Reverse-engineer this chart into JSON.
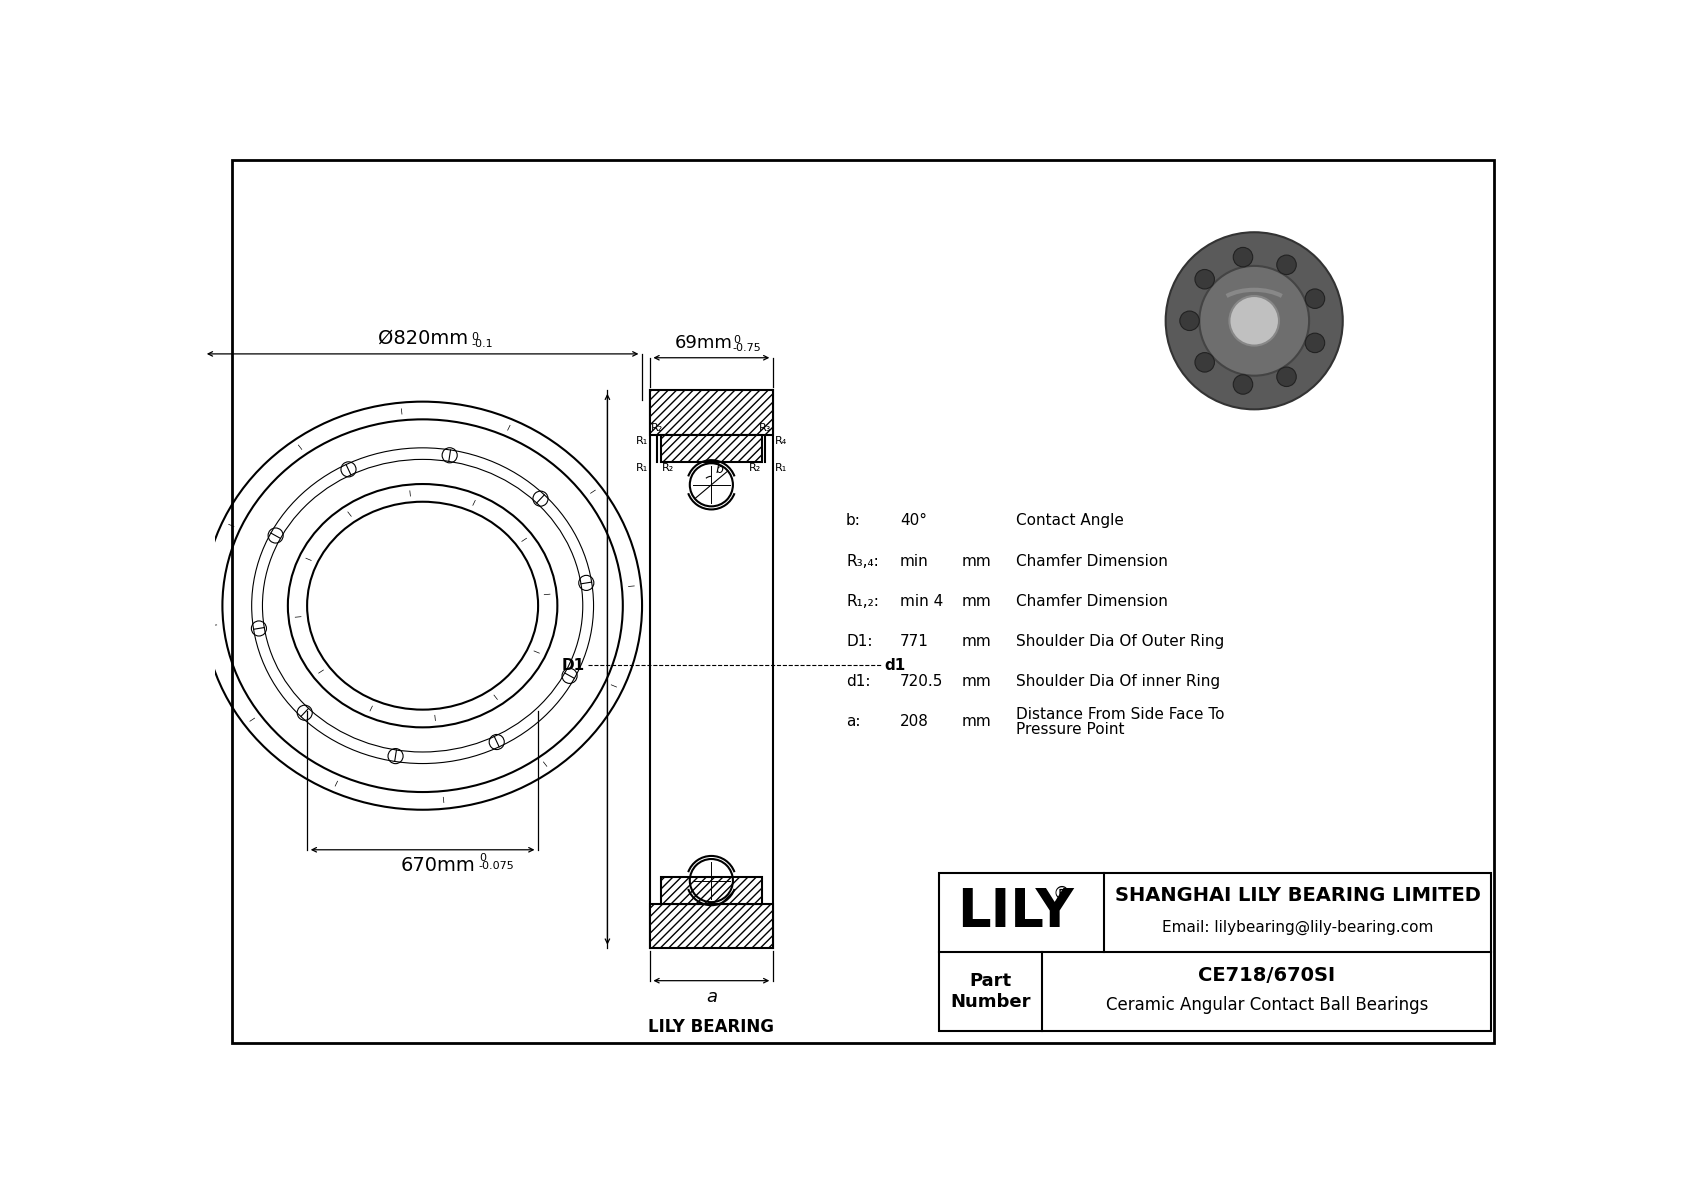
{
  "bg_color": "#ffffff",
  "line_color": "#000000",
  "title_part_number": "CE718/670SI",
  "title_bearing_type": "Ceramic Angular Contact Ball Bearings",
  "company_name": "SHANGHAI LILY BEARING LIMITED",
  "company_email": "Email: lilybearing@lily-bearing.com",
  "lily_text": "LILY",
  "lily_reg": "®",
  "part_label": "Part\nNumber",
  "brand_label": "LILY BEARING",
  "dim_outer": "Ø820mm",
  "dim_outer_tol": "-0.1",
  "dim_outer_tol_top": "0",
  "dim_inner": "670mm",
  "dim_inner_tol": "-0.075",
  "dim_inner_tol_top": "0",
  "dim_width": "69mm",
  "dim_width_tol": "-0.75",
  "dim_width_tol_top": "0",
  "spec_b_label": "b:",
  "spec_b_val": "40°",
  "spec_b_desc": "Contact Angle",
  "spec_r34_label": "R₃,₄:",
  "spec_r34_val": "min",
  "spec_r34_unit": "mm",
  "spec_r34_desc": "Chamfer Dimension",
  "spec_r12_label": "R₁,₂:",
  "spec_r12_val": "min 4",
  "spec_r12_unit": "mm",
  "spec_r12_desc": "Chamfer Dimension",
  "spec_D1_label": "D1:",
  "spec_D1_val": "771",
  "spec_D1_unit": "mm",
  "spec_D1_desc": "Shoulder Dia Of Outer Ring",
  "spec_d1_label": "d1:",
  "spec_d1_val": "720.5",
  "spec_d1_unit": "mm",
  "spec_d1_desc": "Shoulder Dia Of inner Ring",
  "spec_a_label": "a:",
  "spec_a_val": "208",
  "spec_a_unit": "mm",
  "spec_a_desc": "Distance From Side Face To\nPressure Point",
  "cross_section_label": "a",
  "photo_colors": {
    "outer": "#5a5a5a",
    "inner_ring": "#6e6e6e",
    "hole": "#c0c0c0",
    "pocket": "#3a3a3a",
    "highlight": "#888888"
  }
}
